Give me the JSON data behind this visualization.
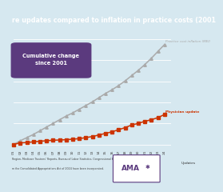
{
  "title": "re updates compared to inflation in practice costs (2001",
  "title_color": "#ffffff",
  "title_bg": "#4a9db5",
  "plot_bg_color": "#d6e8f0",
  "footer_bg": "#c8d8e0",
  "years": [
    2001,
    2002,
    2003,
    2004,
    2005,
    2006,
    2007,
    2008,
    2009,
    2010,
    2011,
    2012,
    2013,
    2014,
    2015,
    2016,
    2017,
    2018,
    2019,
    2020,
    2021,
    2022,
    2023,
    2024
  ],
  "mei": [
    0,
    3.5,
    6.5,
    9.5,
    13.0,
    16.5,
    20.0,
    23.5,
    27.0,
    30.0,
    33.5,
    37.0,
    40.5,
    44.5,
    48.5,
    52.0,
    56.0,
    60.5,
    65.5,
    70.5,
    76.0,
    82.0,
    88.5,
    95.0
  ],
  "physician": [
    0,
    1.5,
    1.8,
    2.5,
    3.0,
    3.5,
    4.0,
    4.2,
    4.5,
    5.0,
    5.5,
    6.5,
    7.5,
    9.0,
    10.5,
    12.0,
    14.0,
    16.0,
    18.5,
    20.0,
    22.0,
    23.5,
    25.5,
    28.5
  ],
  "mei_color": "#aaaaaa",
  "physician_color": "#cc3300",
  "mei_label": "Practice cost inflation (MEI)",
  "physician_label": "Physician update",
  "box_color": "#5b3a7e",
  "box_text": "Cumulative change\nsince 2001",
  "box_text_color": "#ffffff",
  "footer_text1": "Region, Medicare Trustees' Reports, Bureau of Labor Statistics, Congressional Budget Office",
  "footer_text2": "m the Consolidated Appropriations Act of 2024 have been incorporated.",
  "footer_color": "#444444",
  "ama_logo_color": "#5b3a7e",
  "updates_text": "Updates",
  "ylim": [
    -5,
    108
  ],
  "xlim": [
    2001,
    2025
  ]
}
